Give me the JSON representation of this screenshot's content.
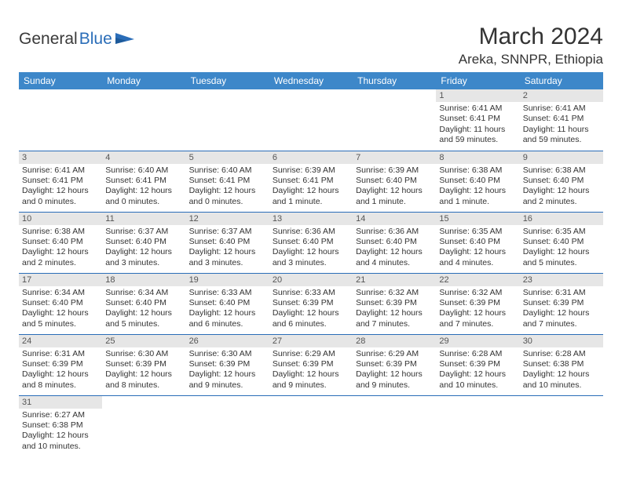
{
  "brand": {
    "part1": "General",
    "part2": "Blue"
  },
  "title": "March 2024",
  "location": "Areka, SNNPR, Ethiopia",
  "colors": {
    "header_bg": "#3d87c9",
    "header_text": "#ffffff",
    "daynum_bg": "#e6e6e6",
    "row_border": "#2a6db8",
    "brand_blue": "#2a6db8",
    "text": "#333333"
  },
  "day_headers": [
    "Sunday",
    "Monday",
    "Tuesday",
    "Wednesday",
    "Thursday",
    "Friday",
    "Saturday"
  ],
  "weeks": [
    [
      null,
      null,
      null,
      null,
      null,
      {
        "n": "1",
        "sr": "Sunrise: 6:41 AM",
        "ss": "Sunset: 6:41 PM",
        "dl1": "Daylight: 11 hours",
        "dl2": "and 59 minutes."
      },
      {
        "n": "2",
        "sr": "Sunrise: 6:41 AM",
        "ss": "Sunset: 6:41 PM",
        "dl1": "Daylight: 11 hours",
        "dl2": "and 59 minutes."
      }
    ],
    [
      {
        "n": "3",
        "sr": "Sunrise: 6:41 AM",
        "ss": "Sunset: 6:41 PM",
        "dl1": "Daylight: 12 hours",
        "dl2": "and 0 minutes."
      },
      {
        "n": "4",
        "sr": "Sunrise: 6:40 AM",
        "ss": "Sunset: 6:41 PM",
        "dl1": "Daylight: 12 hours",
        "dl2": "and 0 minutes."
      },
      {
        "n": "5",
        "sr": "Sunrise: 6:40 AM",
        "ss": "Sunset: 6:41 PM",
        "dl1": "Daylight: 12 hours",
        "dl2": "and 0 minutes."
      },
      {
        "n": "6",
        "sr": "Sunrise: 6:39 AM",
        "ss": "Sunset: 6:41 PM",
        "dl1": "Daylight: 12 hours",
        "dl2": "and 1 minute."
      },
      {
        "n": "7",
        "sr": "Sunrise: 6:39 AM",
        "ss": "Sunset: 6:40 PM",
        "dl1": "Daylight: 12 hours",
        "dl2": "and 1 minute."
      },
      {
        "n": "8",
        "sr": "Sunrise: 6:38 AM",
        "ss": "Sunset: 6:40 PM",
        "dl1": "Daylight: 12 hours",
        "dl2": "and 1 minute."
      },
      {
        "n": "9",
        "sr": "Sunrise: 6:38 AM",
        "ss": "Sunset: 6:40 PM",
        "dl1": "Daylight: 12 hours",
        "dl2": "and 2 minutes."
      }
    ],
    [
      {
        "n": "10",
        "sr": "Sunrise: 6:38 AM",
        "ss": "Sunset: 6:40 PM",
        "dl1": "Daylight: 12 hours",
        "dl2": "and 2 minutes."
      },
      {
        "n": "11",
        "sr": "Sunrise: 6:37 AM",
        "ss": "Sunset: 6:40 PM",
        "dl1": "Daylight: 12 hours",
        "dl2": "and 3 minutes."
      },
      {
        "n": "12",
        "sr": "Sunrise: 6:37 AM",
        "ss": "Sunset: 6:40 PM",
        "dl1": "Daylight: 12 hours",
        "dl2": "and 3 minutes."
      },
      {
        "n": "13",
        "sr": "Sunrise: 6:36 AM",
        "ss": "Sunset: 6:40 PM",
        "dl1": "Daylight: 12 hours",
        "dl2": "and 3 minutes."
      },
      {
        "n": "14",
        "sr": "Sunrise: 6:36 AM",
        "ss": "Sunset: 6:40 PM",
        "dl1": "Daylight: 12 hours",
        "dl2": "and 4 minutes."
      },
      {
        "n": "15",
        "sr": "Sunrise: 6:35 AM",
        "ss": "Sunset: 6:40 PM",
        "dl1": "Daylight: 12 hours",
        "dl2": "and 4 minutes."
      },
      {
        "n": "16",
        "sr": "Sunrise: 6:35 AM",
        "ss": "Sunset: 6:40 PM",
        "dl1": "Daylight: 12 hours",
        "dl2": "and 5 minutes."
      }
    ],
    [
      {
        "n": "17",
        "sr": "Sunrise: 6:34 AM",
        "ss": "Sunset: 6:40 PM",
        "dl1": "Daylight: 12 hours",
        "dl2": "and 5 minutes."
      },
      {
        "n": "18",
        "sr": "Sunrise: 6:34 AM",
        "ss": "Sunset: 6:40 PM",
        "dl1": "Daylight: 12 hours",
        "dl2": "and 5 minutes."
      },
      {
        "n": "19",
        "sr": "Sunrise: 6:33 AM",
        "ss": "Sunset: 6:40 PM",
        "dl1": "Daylight: 12 hours",
        "dl2": "and 6 minutes."
      },
      {
        "n": "20",
        "sr": "Sunrise: 6:33 AM",
        "ss": "Sunset: 6:39 PM",
        "dl1": "Daylight: 12 hours",
        "dl2": "and 6 minutes."
      },
      {
        "n": "21",
        "sr": "Sunrise: 6:32 AM",
        "ss": "Sunset: 6:39 PM",
        "dl1": "Daylight: 12 hours",
        "dl2": "and 7 minutes."
      },
      {
        "n": "22",
        "sr": "Sunrise: 6:32 AM",
        "ss": "Sunset: 6:39 PM",
        "dl1": "Daylight: 12 hours",
        "dl2": "and 7 minutes."
      },
      {
        "n": "23",
        "sr": "Sunrise: 6:31 AM",
        "ss": "Sunset: 6:39 PM",
        "dl1": "Daylight: 12 hours",
        "dl2": "and 7 minutes."
      }
    ],
    [
      {
        "n": "24",
        "sr": "Sunrise: 6:31 AM",
        "ss": "Sunset: 6:39 PM",
        "dl1": "Daylight: 12 hours",
        "dl2": "and 8 minutes."
      },
      {
        "n": "25",
        "sr": "Sunrise: 6:30 AM",
        "ss": "Sunset: 6:39 PM",
        "dl1": "Daylight: 12 hours",
        "dl2": "and 8 minutes."
      },
      {
        "n": "26",
        "sr": "Sunrise: 6:30 AM",
        "ss": "Sunset: 6:39 PM",
        "dl1": "Daylight: 12 hours",
        "dl2": "and 9 minutes."
      },
      {
        "n": "27",
        "sr": "Sunrise: 6:29 AM",
        "ss": "Sunset: 6:39 PM",
        "dl1": "Daylight: 12 hours",
        "dl2": "and 9 minutes."
      },
      {
        "n": "28",
        "sr": "Sunrise: 6:29 AM",
        "ss": "Sunset: 6:39 PM",
        "dl1": "Daylight: 12 hours",
        "dl2": "and 9 minutes."
      },
      {
        "n": "29",
        "sr": "Sunrise: 6:28 AM",
        "ss": "Sunset: 6:39 PM",
        "dl1": "Daylight: 12 hours",
        "dl2": "and 10 minutes."
      },
      {
        "n": "30",
        "sr": "Sunrise: 6:28 AM",
        "ss": "Sunset: 6:38 PM",
        "dl1": "Daylight: 12 hours",
        "dl2": "and 10 minutes."
      }
    ],
    [
      {
        "n": "31",
        "sr": "Sunrise: 6:27 AM",
        "ss": "Sunset: 6:38 PM",
        "dl1": "Daylight: 12 hours",
        "dl2": "and 10 minutes."
      },
      null,
      null,
      null,
      null,
      null,
      null
    ]
  ]
}
